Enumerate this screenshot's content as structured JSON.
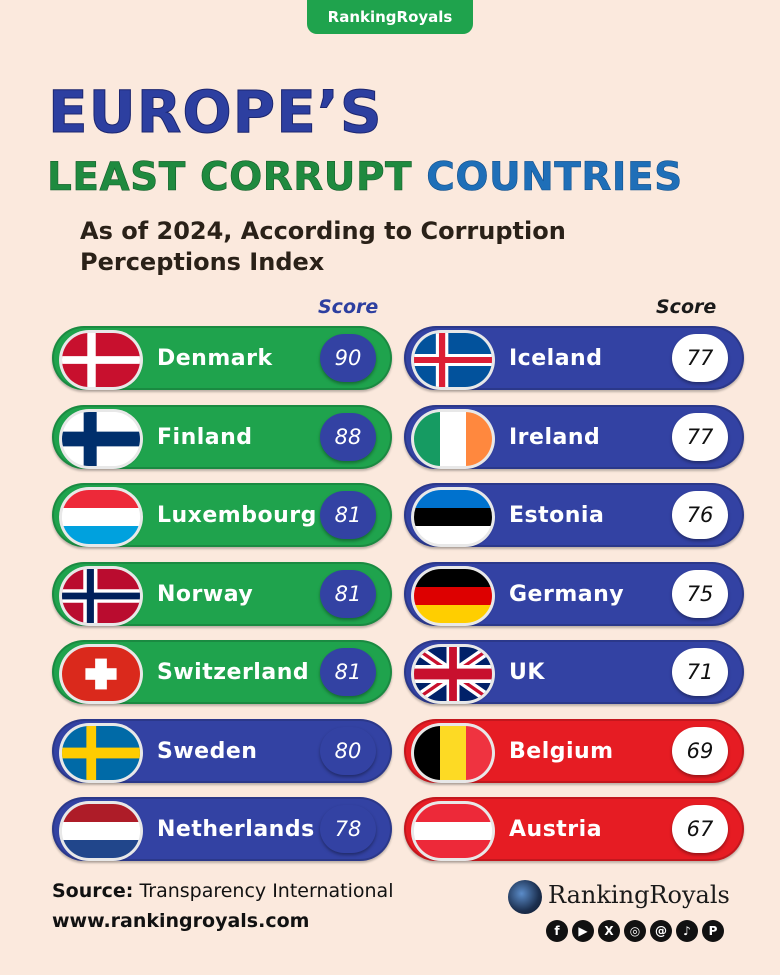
{
  "brand_tab": "RankingRoyals",
  "title_line1": "EUROPE’S",
  "title_line2_part1": "LEAST CORRUPT",
  "title_line2_part2": "COUNTRIES",
  "subtitle": "As of 2024, According to Corruption Perceptions Index",
  "score_header": "Score",
  "chart_data": {
    "type": "table",
    "title": "EUROPE’S LEAST CORRUPT COUNTRIES",
    "subtitle": "As of 2024, According to Corruption Perceptions Index",
    "value_label": "Score",
    "rows": [
      {
        "country": "Denmark",
        "score": 90,
        "pill_color": "#1fa34d",
        "flag": "denmark-flag-icon"
      },
      {
        "country": "Finland",
        "score": 88,
        "pill_color": "#1fa34d",
        "flag": "finland-flag-icon"
      },
      {
        "country": "Luxembourg",
        "score": 81,
        "pill_color": "#1fa34d",
        "flag": "luxembourg-flag-icon"
      },
      {
        "country": "Norway",
        "score": 81,
        "pill_color": "#1fa34d",
        "flag": "norway-flag-icon"
      },
      {
        "country": "Switzerland",
        "score": 81,
        "pill_color": "#1fa34d",
        "flag": "switzerland-flag-icon"
      },
      {
        "country": "Sweden",
        "score": 80,
        "pill_color": "#3342a3",
        "flag": "sweden-flag-icon"
      },
      {
        "country": "Netherlands",
        "score": 78,
        "pill_color": "#3342a3",
        "flag": "netherlands-flag-icon"
      },
      {
        "country": "Iceland",
        "score": 77,
        "pill_color": "#3342a3",
        "flag": "iceland-flag-icon"
      },
      {
        "country": "Ireland",
        "score": 77,
        "pill_color": "#3342a3",
        "flag": "ireland-flag-icon"
      },
      {
        "country": "Estonia",
        "score": 76,
        "pill_color": "#3342a3",
        "flag": "estonia-flag-icon"
      },
      {
        "country": "Germany",
        "score": 75,
        "pill_color": "#3342a3",
        "flag": "germany-flag-icon"
      },
      {
        "country": "UK",
        "score": 71,
        "pill_color": "#3342a3",
        "flag": "uk-flag-icon"
      },
      {
        "country": "Belgium",
        "score": 69,
        "pill_color": "#e61c23",
        "flag": "belgium-flag-icon"
      },
      {
        "country": "Austria",
        "score": 67,
        "pill_color": "#e61c23",
        "flag": "austria-flag-icon"
      }
    ]
  },
  "footer": {
    "source_label": "Source:",
    "source_value": "Transparency International",
    "website": "www.rankingroyals.com",
    "logo_text": "RankingRoyals",
    "socials": [
      "facebook-icon",
      "youtube-icon",
      "x-icon",
      "instagram-icon",
      "threads-icon",
      "tiktok-icon",
      "pinterest-icon"
    ]
  }
}
